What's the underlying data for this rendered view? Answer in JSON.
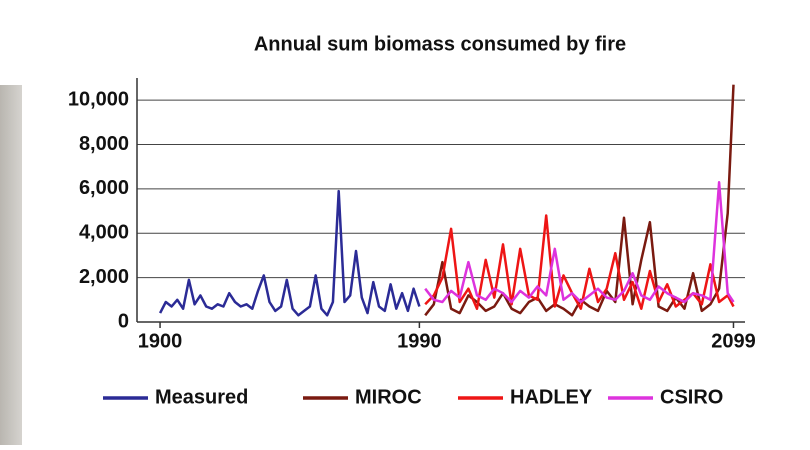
{
  "chart_data": {
    "type": "line",
    "title": "Annual sum biomass consumed by fire",
    "xlim": [
      1892,
      2103
    ],
    "xticks": [
      1900,
      1990,
      2099
    ],
    "ylim": [
      0,
      11000
    ],
    "yticks": [
      0,
      {
        "value": 2000,
        "label": "2,000"
      },
      {
        "value": 4000,
        "label": "4,000"
      },
      {
        "value": 6000,
        "label": "6,000"
      },
      {
        "value": 8000,
        "label": "8,000"
      },
      {
        "value": 10000,
        "label": "10,000"
      }
    ],
    "grid": true,
    "legend": "bottom",
    "series": [
      {
        "name": "Measured",
        "color": "#2b2b96",
        "x": [
          1900,
          1902,
          1904,
          1906,
          1908,
          1910,
          1912,
          1914,
          1916,
          1918,
          1920,
          1922,
          1924,
          1926,
          1928,
          1930,
          1932,
          1934,
          1936,
          1938,
          1940,
          1942,
          1944,
          1946,
          1948,
          1950,
          1952,
          1954,
          1956,
          1958,
          1960,
          1962,
          1964,
          1966,
          1968,
          1970,
          1972,
          1974,
          1976,
          1978,
          1980,
          1982,
          1984,
          1986,
          1988,
          1990
        ],
        "values": [
          400,
          900,
          700,
          1000,
          600,
          1900,
          800,
          1200,
          700,
          600,
          800,
          700,
          1300,
          900,
          700,
          800,
          600,
          1400,
          2100,
          900,
          500,
          700,
          1900,
          600,
          300,
          500,
          700,
          2100,
          600,
          300,
          900,
          5900,
          900,
          1200,
          3200,
          1100,
          400,
          1800,
          700,
          500,
          1700,
          600,
          1300,
          500,
          1500,
          700
        ]
      },
      {
        "name": "MIROC",
        "color": "#7a1a10",
        "x": [
          1992,
          1995,
          1998,
          2001,
          2004,
          2007,
          2010,
          2013,
          2016,
          2019,
          2022,
          2025,
          2028,
          2031,
          2034,
          2037,
          2040,
          2043,
          2046,
          2049,
          2052,
          2055,
          2058,
          2061,
          2064,
          2067,
          2070,
          2073,
          2076,
          2079,
          2082,
          2085,
          2088,
          2091,
          2094,
          2097,
          2099
        ],
        "values": [
          300,
          800,
          2700,
          600,
          400,
          1200,
          900,
          500,
          700,
          1300,
          600,
          400,
          900,
          1100,
          500,
          800,
          600,
          300,
          1000,
          700,
          500,
          1400,
          900,
          4700,
          800,
          2800,
          4500,
          700,
          500,
          1100,
          600,
          2200,
          500,
          800,
          1500,
          4900,
          10700
        ]
      },
      {
        "name": "HADLEY",
        "color": "#ee1515",
        "x": [
          1992,
          1995,
          1998,
          2001,
          2004,
          2007,
          2010,
          2013,
          2016,
          2019,
          2022,
          2025,
          2028,
          2031,
          2034,
          2037,
          2040,
          2043,
          2046,
          2049,
          2052,
          2055,
          2058,
          2061,
          2064,
          2067,
          2070,
          2073,
          2076,
          2079,
          2082,
          2085,
          2088,
          2091,
          2094,
          2097,
          2099
        ],
        "values": [
          800,
          1200,
          2000,
          4200,
          900,
          1500,
          600,
          2800,
          1100,
          3500,
          800,
          3300,
          1200,
          1000,
          4800,
          700,
          2100,
          1300,
          600,
          2400,
          900,
          1500,
          3100,
          1000,
          1800,
          600,
          2300,
          900,
          1700,
          700,
          1000,
          1300,
          800,
          2600,
          900,
          1200,
          700
        ]
      },
      {
        "name": "CSIRO",
        "color": "#dd33dd",
        "x": [
          1992,
          1995,
          1998,
          2001,
          2004,
          2007,
          2010,
          2013,
          2016,
          2019,
          2022,
          2025,
          2028,
          2031,
          2034,
          2037,
          2040,
          2043,
          2046,
          2049,
          2052,
          2055,
          2058,
          2061,
          2064,
          2067,
          2070,
          2073,
          2076,
          2079,
          2082,
          2085,
          2088,
          2091,
          2094,
          2097,
          2099
        ],
        "values": [
          1500,
          1000,
          900,
          1400,
          1100,
          2700,
          1200,
          1000,
          1500,
          1300,
          900,
          1400,
          1100,
          1600,
          1200,
          3300,
          1000,
          1300,
          900,
          1200,
          1500,
          1100,
          1000,
          1400,
          2200,
          1200,
          1000,
          1600,
          1300,
          1100,
          900,
          1300,
          1200,
          1000,
          6300,
          1300,
          900
        ]
      }
    ]
  }
}
